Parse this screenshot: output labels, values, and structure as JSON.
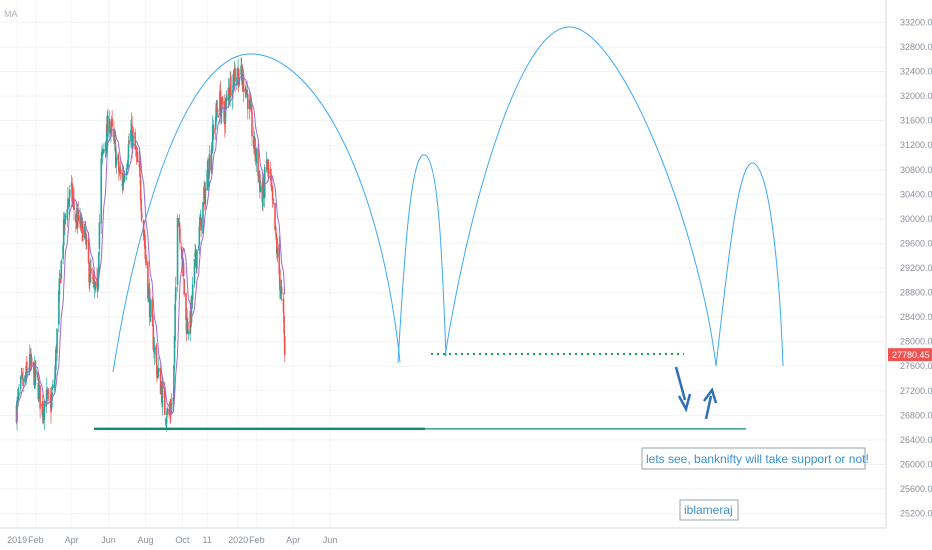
{
  "indicator_label": "MA",
  "price_tag": "27780.45",
  "annotation": "lets see, banknifty will take support or not!",
  "author": "iblameraj",
  "colors": {
    "up": "#26a69a",
    "down": "#ef5350",
    "ma": "#9c6bd1",
    "arc": "#3fa9f5",
    "support": "#0f8a73",
    "dotted": "#16a34a",
    "arrow": "#2f6fb5",
    "tag": "#ef5350"
  },
  "chart_data": {
    "type": "candlestick",
    "title": "",
    "xlabel": "",
    "ylabel": "",
    "ylim": [
      24900,
      33500
    ],
    "x_ticks": [
      "2019",
      "Feb",
      "Apr",
      "Jun",
      "Aug",
      "Oct",
      "11",
      "2020",
      "Feb",
      "Apr",
      "Jun"
    ],
    "y_ticks": [
      "33200.00",
      "32800.00",
      "32400.00",
      "32000.00",
      "31600.00",
      "31200.00",
      "30800.00",
      "30400.00",
      "30000.00",
      "29600.00",
      "29200.00",
      "28800.00",
      "28400.00",
      "28000.00",
      "27600.00",
      "27200.00",
      "26800.00",
      "26400.00",
      "26000.00",
      "25600.00",
      "25200.00"
    ],
    "series_close": [
      [
        "2018-12-31",
        26900
      ],
      [
        "2019-01-07",
        27250
      ],
      [
        "2019-01-14",
        27350
      ],
      [
        "2019-01-21",
        27650
      ],
      [
        "2019-01-28",
        27500
      ],
      [
        "2019-02-04",
        27300
      ],
      [
        "2019-02-11",
        26900
      ],
      [
        "2019-02-18",
        27100
      ],
      [
        "2019-02-25",
        26900
      ],
      [
        "2019-03-04",
        27400
      ],
      [
        "2019-03-11",
        28700
      ],
      [
        "2019-03-18",
        29700
      ],
      [
        "2019-03-25",
        30300
      ],
      [
        "2019-04-01",
        30400
      ],
      [
        "2019-04-08",
        30000
      ],
      [
        "2019-04-15",
        29900
      ],
      [
        "2019-04-22",
        29800
      ],
      [
        "2019-04-29",
        29200
      ],
      [
        "2019-05-06",
        28900
      ],
      [
        "2019-05-13",
        28700
      ],
      [
        "2019-05-20",
        30900
      ],
      [
        "2019-05-27",
        31300
      ],
      [
        "2019-06-03",
        31600
      ],
      [
        "2019-06-10",
        31200
      ],
      [
        "2019-06-17",
        30800
      ],
      [
        "2019-06-24",
        30600
      ],
      [
        "2019-07-01",
        31000
      ],
      [
        "2019-07-08",
        31400
      ],
      [
        "2019-07-15",
        31100
      ],
      [
        "2019-07-22",
        30700
      ],
      [
        "2019-07-29",
        29800
      ],
      [
        "2019-08-05",
        28900
      ],
      [
        "2019-08-12",
        28200
      ],
      [
        "2019-08-19",
        27600
      ],
      [
        "2019-08-26",
        27300
      ],
      [
        "2019-09-02",
        26900
      ],
      [
        "2019-09-09",
        26800
      ],
      [
        "2019-09-16",
        27100
      ],
      [
        "2019-09-23",
        30200
      ],
      [
        "2019-09-30",
        29500
      ],
      [
        "2019-10-07",
        28300
      ],
      [
        "2019-10-14",
        28300
      ],
      [
        "2019-10-21",
        29200
      ],
      [
        "2019-10-28",
        29700
      ],
      [
        "2019-11-04",
        30200
      ],
      [
        "2019-11-11",
        30700
      ],
      [
        "2019-11-18",
        31200
      ],
      [
        "2019-11-25",
        31700
      ],
      [
        "2019-12-02",
        31900
      ],
      [
        "2019-12-09",
        31600
      ],
      [
        "2019-12-16",
        32100
      ],
      [
        "2019-12-23",
        32300
      ],
      [
        "2019-12-30",
        32400
      ],
      [
        "2020-01-06",
        32300
      ],
      [
        "2020-01-13",
        32200
      ],
      [
        "2020-01-20",
        31800
      ],
      [
        "2020-01-27",
        31200
      ],
      [
        "2020-02-03",
        30800
      ],
      [
        "2020-02-10",
        30300
      ],
      [
        "2020-02-17",
        30900
      ],
      [
        "2020-02-24",
        30500
      ],
      [
        "2020-03-02",
        29800
      ],
      [
        "2020-03-09",
        29100
      ],
      [
        "2020-03-16",
        28300
      ],
      [
        "2020-03-18",
        27780
      ]
    ],
    "support_level": 26580,
    "dotted_level": 27800,
    "last_price": 27780.45
  }
}
